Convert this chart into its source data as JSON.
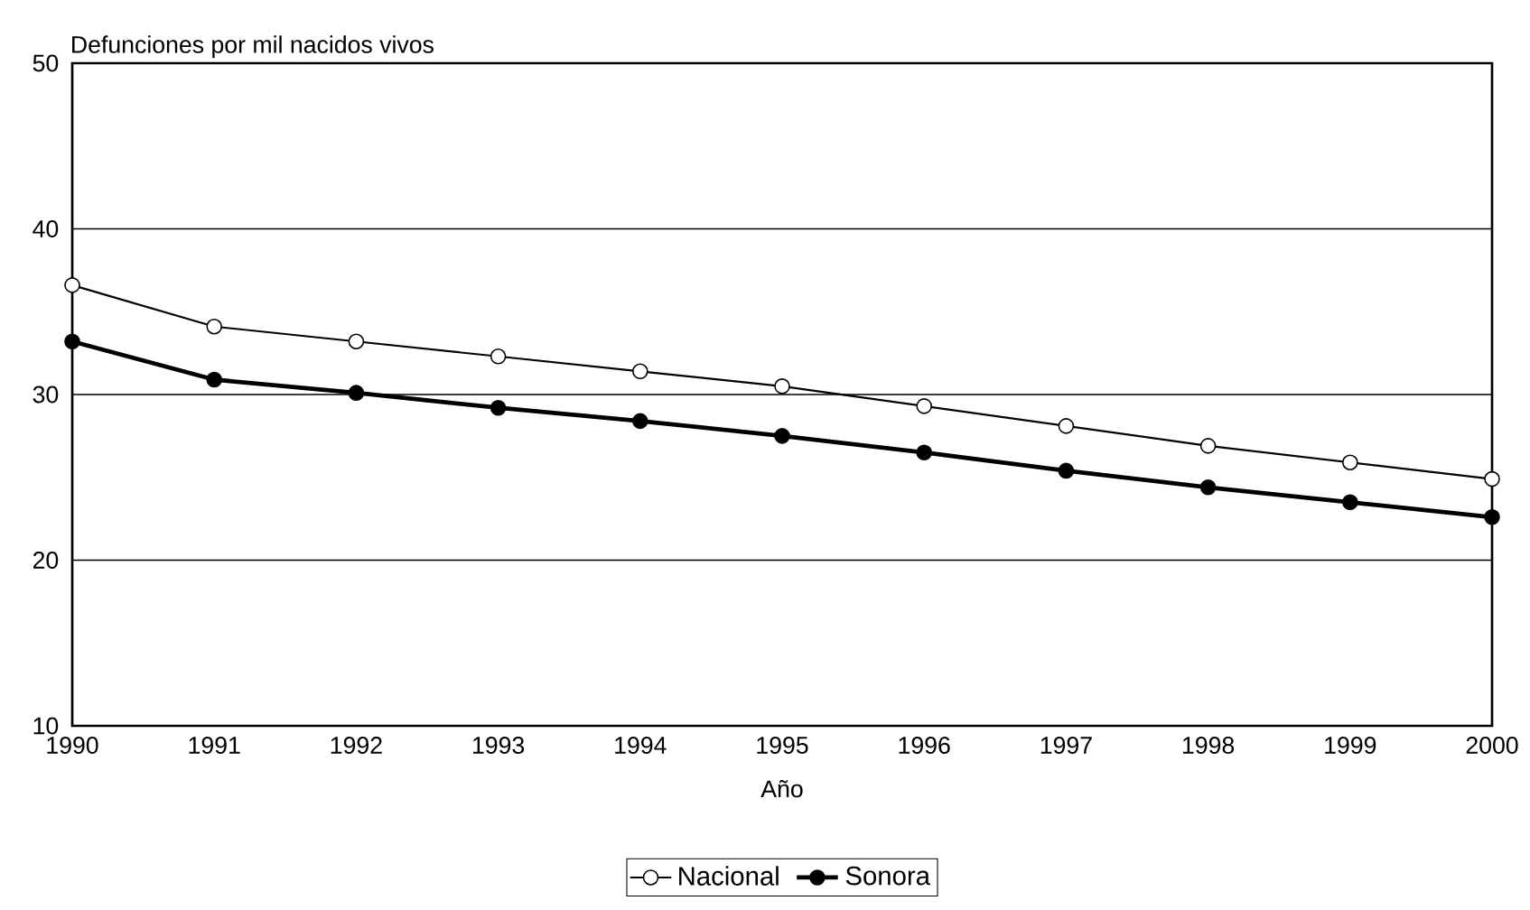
{
  "chart_data": {
    "type": "line",
    "ylabel": "Defunciones por mil nacidos vivos",
    "xlabel": "Año",
    "x": [
      1990,
      1991,
      1992,
      1993,
      1994,
      1995,
      1996,
      1997,
      1998,
      1999,
      2000
    ],
    "series": [
      {
        "name": "Nacional",
        "color": "#000000",
        "values": [
          36.6,
          34.1,
          33.2,
          32.3,
          31.4,
          30.5,
          29.3,
          28.1,
          26.9,
          25.9,
          24.9
        ]
      },
      {
        "name": "Sonora",
        "color": "#000000",
        "values": [
          33.2,
          30.9,
          30.1,
          29.2,
          28.4,
          27.5,
          26.5,
          25.4,
          24.4,
          23.5,
          22.6
        ]
      }
    ],
    "xlim": [
      1990,
      2000
    ],
    "xticks": [
      1990,
      1991,
      1992,
      1993,
      1994,
      1995,
      1996,
      1997,
      1998,
      1999,
      2000
    ],
    "ylim": [
      10,
      50
    ],
    "yticks": [
      10,
      20,
      30,
      40,
      50
    ],
    "grid": "y",
    "legend": "bottom",
    "marker": "circle",
    "line_style": "solid"
  }
}
